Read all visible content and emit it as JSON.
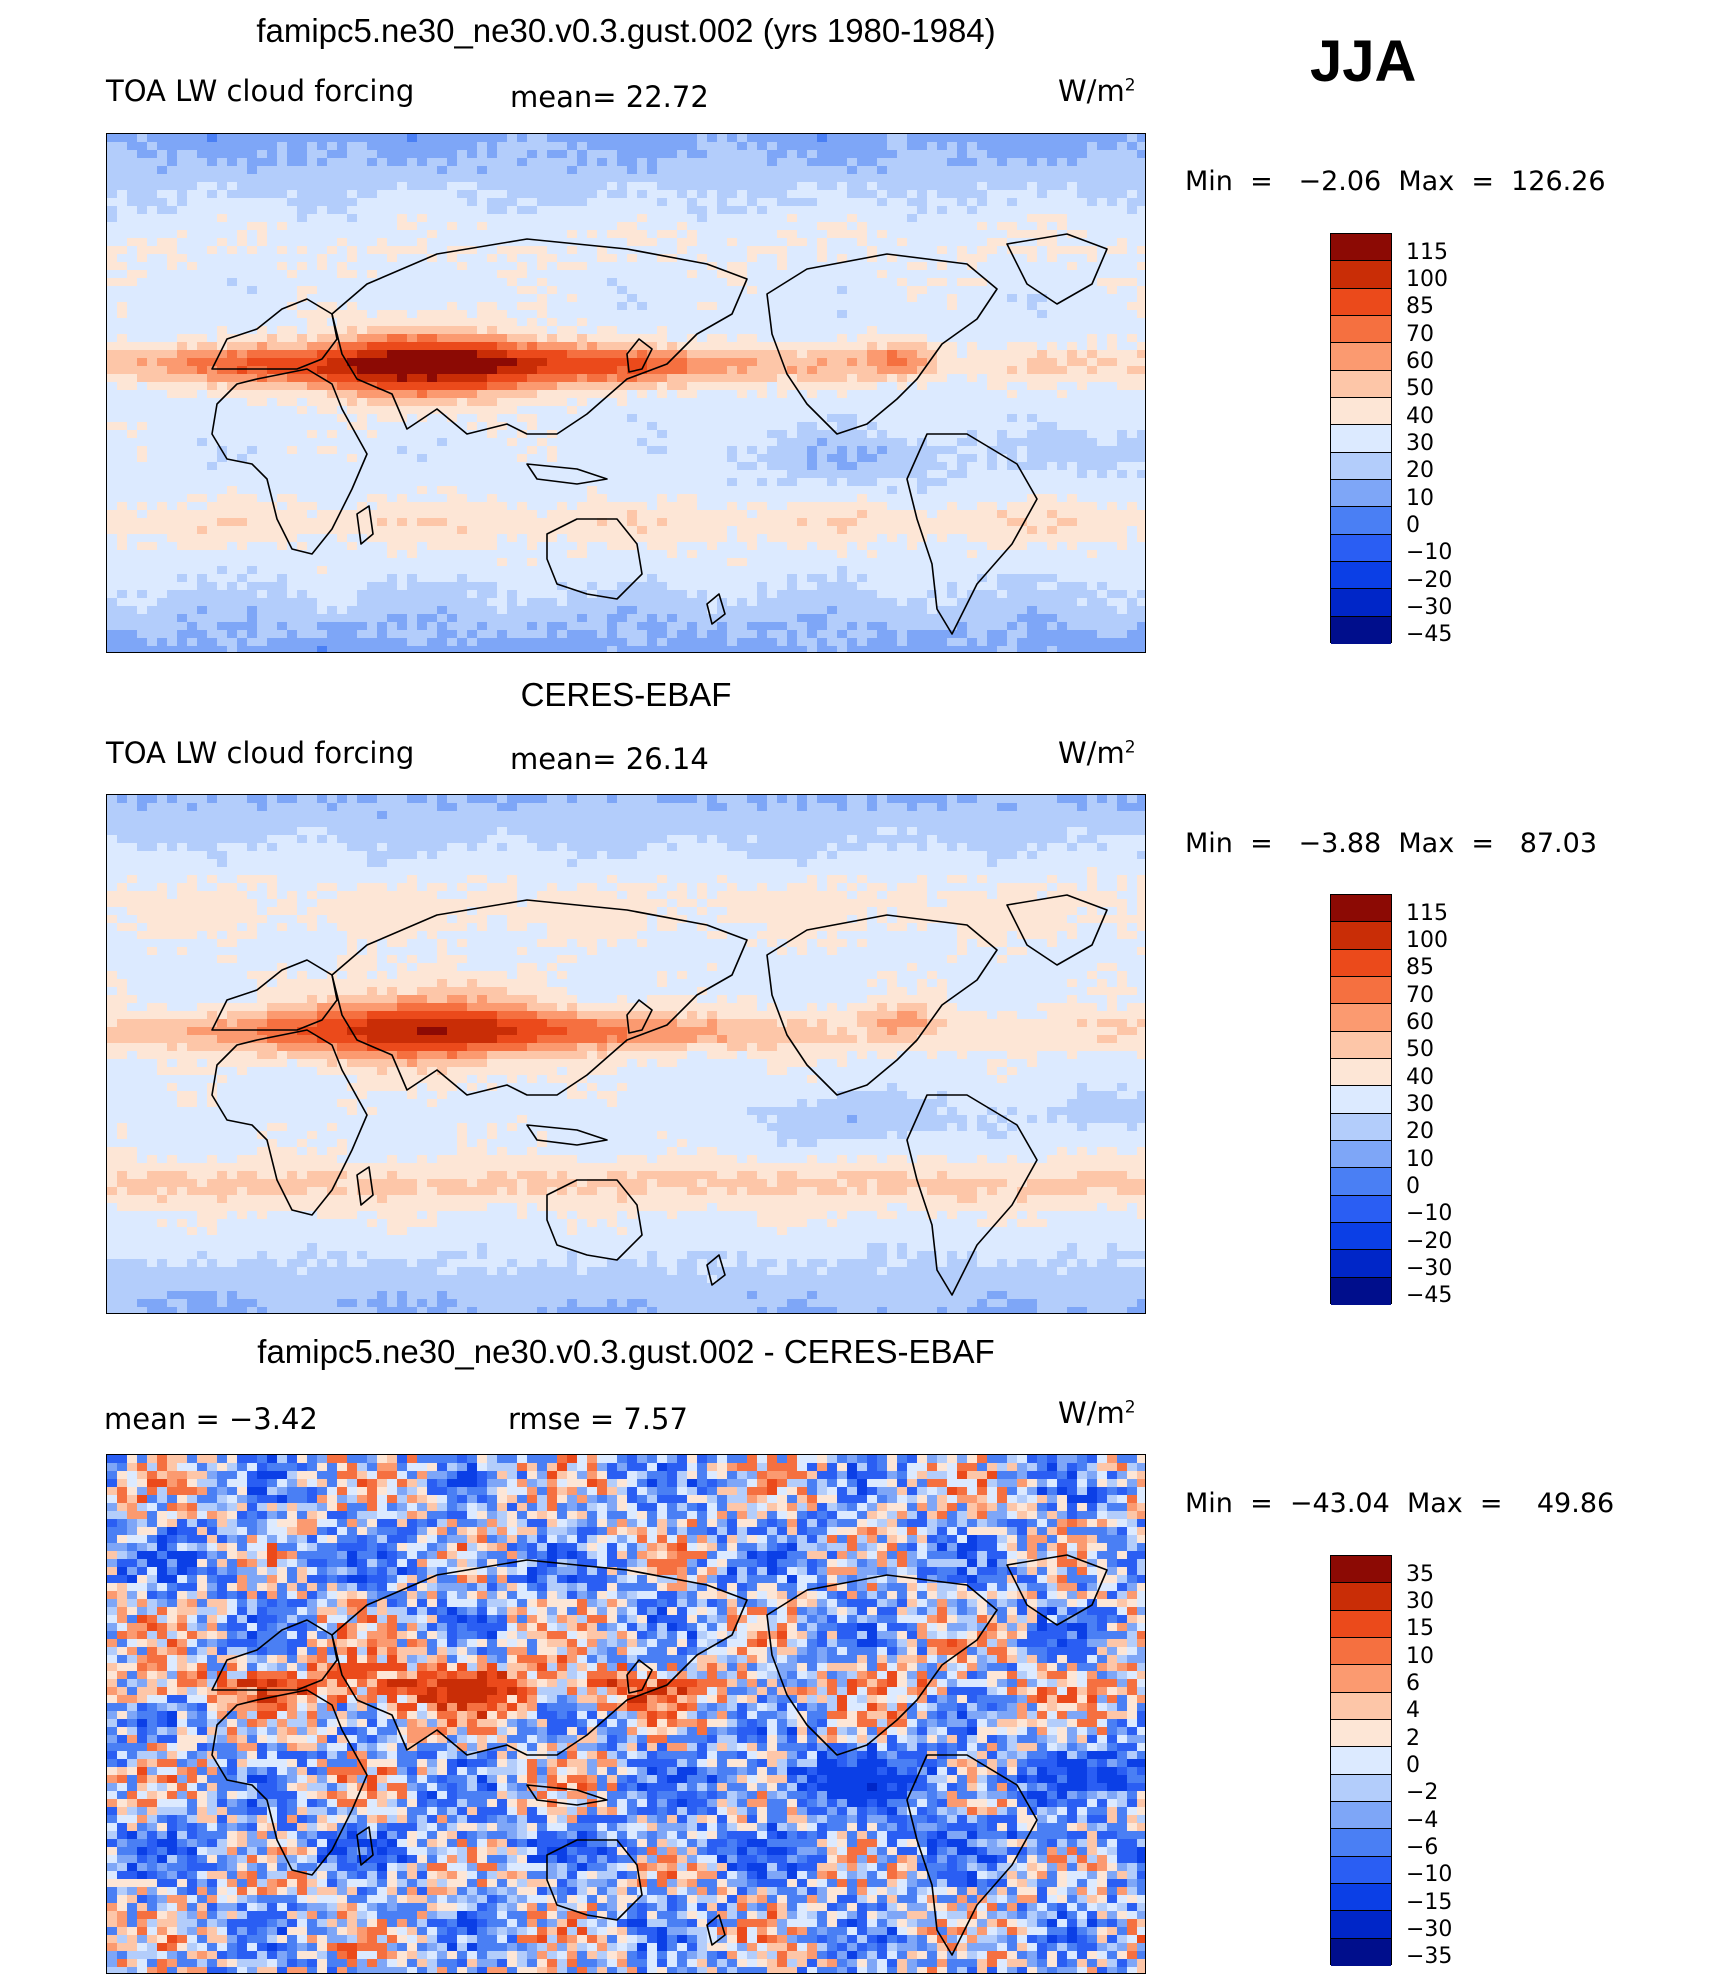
{
  "season": "JJA",
  "palette": [
    "#000e8c",
    "#0026c8",
    "#0b3fe6",
    "#2a5ef3",
    "#4a7ff4",
    "#7ea6f7",
    "#b3cdfb",
    "#dceaff",
    "#fde6d6",
    "#fdc6a8",
    "#fb9a70",
    "#f57040",
    "#eb4a1b",
    "#c92d06",
    "#8c0a04"
  ],
  "panels": [
    {
      "id": "model",
      "title": "famipc5.ne30_ne30.v0.3.gust.002 (yrs 1980-1984)",
      "variable": "TOA LW cloud forcing",
      "stat1": "mean=   22.72",
      "units": "W/m",
      "units_sup": "2",
      "minmax": "Min  =   −2.06  Max  =  126.26",
      "levels": [
        "115",
        "100",
        "85",
        "70",
        "60",
        "50",
        "40",
        "30",
        "20",
        "10",
        "0",
        "−10",
        "−20",
        "−30",
        "−45"
      ],
      "field": {
        "base": 25,
        "itcz_amp": 55,
        "itcz_lat": 10,
        "warm_pool": 40,
        "storm_s": 12,
        "storm_n": 4,
        "polar_drop": 20,
        "noise": 4
      }
    },
    {
      "id": "obs",
      "title": "CERES-EBAF",
      "variable": "TOA LW cloud forcing",
      "stat1": "mean=   26.14",
      "units": "W/m",
      "units_sup": "2",
      "minmax": "Min  =   −3.88  Max  =   87.03",
      "levels": [
        "115",
        "100",
        "85",
        "70",
        "60",
        "50",
        "40",
        "30",
        "20",
        "10",
        "0",
        "−10",
        "−20",
        "−30",
        "−45"
      ],
      "field": {
        "base": 27,
        "itcz_amp": 40,
        "itcz_lat": 8,
        "warm_pool": 35,
        "storm_s": 15,
        "storm_n": 6,
        "polar_drop": 18,
        "noise": 3
      }
    },
    {
      "id": "diff",
      "title": "famipc5.ne30_ne30.v0.3.gust.002 - CERES-EBAF",
      "stat1": "mean  =    −3.42",
      "stat2": "rmse  =     7.57",
      "units": "W/m",
      "units_sup": "2",
      "minmax": "Min  =  −43.04  Max  =    49.86",
      "levels": [
        "35",
        "30",
        "15",
        "10",
        "6",
        "4",
        "2",
        "0",
        "−2",
        "−4",
        "−6",
        "−10",
        "−15",
        "−30",
        "−35"
      ],
      "field": {
        "base": -3,
        "itcz_amp": 12,
        "itcz_lat": 10,
        "warm_pool": 6,
        "storm_s": -4,
        "storm_n": -2,
        "polar_drop": 0,
        "noise": 9
      }
    }
  ]
}
